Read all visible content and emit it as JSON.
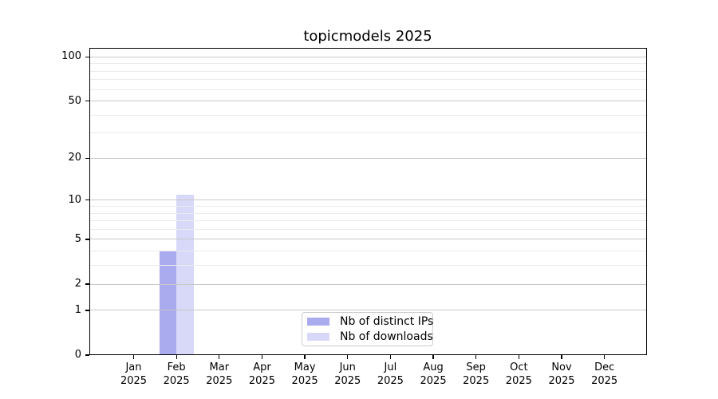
{
  "chart_data": {
    "type": "bar",
    "title": "topicmodels 2025",
    "categories": [
      "Jan",
      "Feb",
      "Mar",
      "Apr",
      "May",
      "Jun",
      "Jul",
      "Aug",
      "Sep",
      "Oct",
      "Nov",
      "Dec"
    ],
    "year_label": "2025",
    "series": [
      {
        "name": "Nb of distinct IPs",
        "color": "#aaaaee",
        "values": [
          0,
          4,
          0,
          0,
          0,
          0,
          0,
          0,
          0,
          0,
          0,
          0
        ]
      },
      {
        "name": "Nb of downloads",
        "color": "#d8d8f8",
        "values": [
          0,
          11,
          0,
          0,
          0,
          0,
          0,
          0,
          0,
          0,
          0,
          0
        ]
      }
    ],
    "y_scale": "log1p",
    "y_ticks": [
      0,
      1,
      2,
      5,
      10,
      20,
      50,
      100
    ],
    "y_minor_gridlines": [
      3,
      4,
      6,
      7,
      8,
      9,
      30,
      40,
      60,
      70,
      80,
      90
    ],
    "y_top": 115,
    "grid": "horizontal, drawn over bars",
    "legend_position": "lower center"
  },
  "colors": {
    "background": "#ffffff",
    "axis": "#000000",
    "major_grid": "#c8c8c8",
    "minor_grid": "#ebebeb",
    "text": "#000000",
    "legend_border": "#cccccc"
  }
}
